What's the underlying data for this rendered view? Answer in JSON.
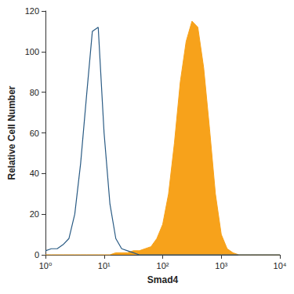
{
  "chart_data": {
    "type": "line",
    "x_label": "Smad4",
    "y_label": "Relative Cell Number",
    "log": "x",
    "grid": false,
    "x": [
      1,
      1.259,
      1.585,
      1.995,
      2.512,
      3.162,
      3.981,
      5.012,
      6.31,
      7.943,
      10,
      12.59,
      15.85,
      19.95,
      25.12,
      31.62,
      39.81,
      50.12,
      63.1,
      79.43,
      100,
      125.9,
      158.5,
      199.5,
      251.2,
      316.2,
      398.1,
      501.2,
      631,
      794.3,
      1000,
      1259,
      1585,
      1995,
      2512,
      3162,
      3981,
      5012,
      6310,
      7943,
      10000
    ],
    "series": [
      {
        "type": "line",
        "color": "#2a5b84",
        "values": [
          2,
          3,
          3,
          5,
          8,
          20,
          45,
          78,
          110,
          112,
          60,
          25,
          8,
          3,
          2,
          1,
          0,
          0,
          0,
          0,
          0,
          0,
          0,
          0,
          0,
          0,
          0,
          0,
          0,
          0,
          0,
          0,
          0,
          0,
          0,
          0,
          0,
          0,
          0,
          0,
          0
        ]
      },
      {
        "type": "area",
        "color": "#f7a21b",
        "values": [
          0,
          0,
          0,
          0,
          0,
          0,
          0,
          0,
          0,
          0,
          0,
          0,
          1,
          1,
          1,
          2,
          2,
          3,
          4,
          8,
          15,
          30,
          55,
          85,
          105,
          115,
          112,
          92,
          62,
          30,
          10,
          3,
          1,
          0,
          0,
          0,
          0,
          0,
          0,
          0,
          0
        ]
      }
    ],
    "xlim": [
      1,
      10000
    ],
    "xticks": [
      {
        "value": 1,
        "label": "10⁰"
      },
      {
        "value": 10,
        "label": "10¹"
      },
      {
        "value": 100,
        "label": "10²"
      },
      {
        "value": 1000,
        "label": "10³"
      },
      {
        "value": 10000,
        "label": "10⁴"
      }
    ],
    "ylim": [
      0,
      120
    ],
    "yticks": [
      0,
      20,
      40,
      60,
      80,
      100,
      120
    ]
  }
}
